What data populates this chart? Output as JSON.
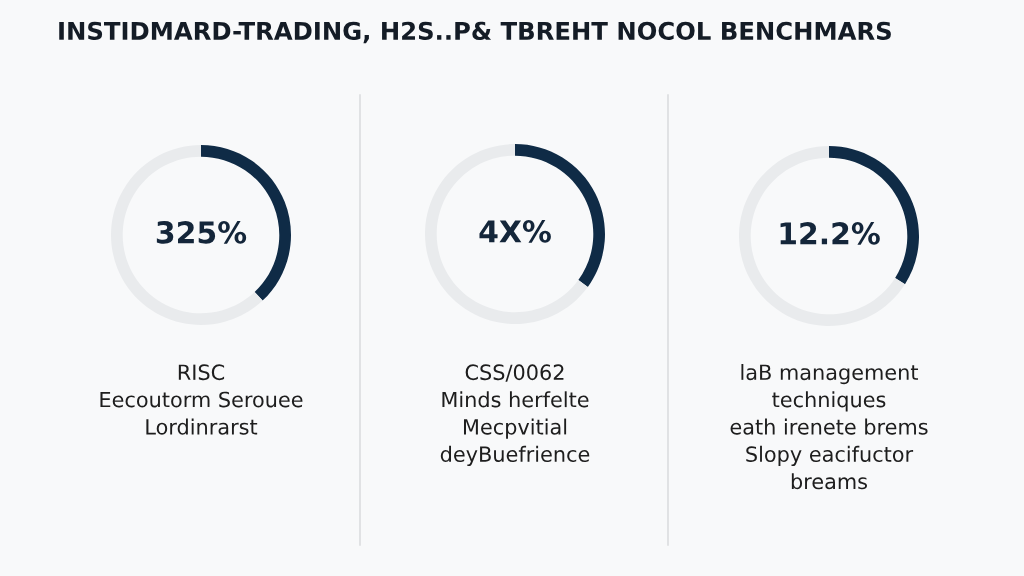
{
  "chart_data": [
    {
      "type": "donut",
      "title": "INSTIDMARD-TRADING, H2S..P& TBREHT NOCOL BENCHMARS",
      "categories": [
        null,
        null
      ],
      "values": [
        38,
        62
      ],
      "colors": [
        "#0f2b46",
        "#e9ebed"
      ],
      "annotations": [
        "325%",
        "RISC\nEecoutorm Serouee\nLordinrarst"
      ]
    },
    {
      "type": "donut",
      "categories": [
        null,
        null
      ],
      "values": [
        35,
        65
      ],
      "colors": [
        "#0f2b46",
        "#e9ebed"
      ],
      "annotations": [
        "4X%",
        "CSS/0062\nMinds herfelte\nMecpvitial\ndeyBuefrience"
      ]
    },
    {
      "type": "donut",
      "categories": [
        null,
        null
      ],
      "values": [
        34,
        66
      ],
      "colors": [
        "#0f2b46",
        "#e9ebed"
      ],
      "annotations": [
        "12.2%",
        "laB management\ntechniques\neath irenete brems\nSlopy eacifuctor\nbreams"
      ]
    }
  ]
}
